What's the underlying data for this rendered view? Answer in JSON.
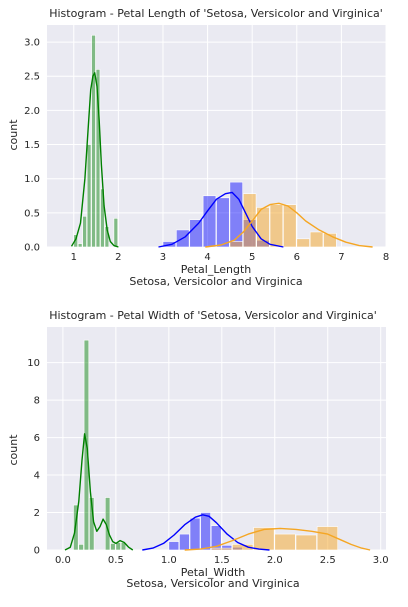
{
  "chart_data": [
    {
      "type": "histogram",
      "title": "Histogram - Petal Length of 'Setosa, Versicolor and Virginica'",
      "xlabel": "Petal_Length",
      "xlabel2": "Setosa, Versicolor and Virginica",
      "ylabel": "count",
      "xlim": [
        0.4,
        8.0
      ],
      "ylim": [
        0,
        3.25
      ],
      "xticks": [
        1,
        2,
        3,
        4,
        5,
        6,
        7,
        8
      ],
      "yticks": [
        0.0,
        0.5,
        1.0,
        1.5,
        2.0,
        2.5,
        3.0
      ],
      "grid": true,
      "series": [
        {
          "color": "#008000",
          "hist_alpha": 0.45,
          "bins": [
            [
              1.0,
              1.1,
              0.18
            ],
            [
              1.1,
              1.2,
              0.05
            ],
            [
              1.2,
              1.3,
              0.45
            ],
            [
              1.3,
              1.4,
              1.5
            ],
            [
              1.4,
              1.5,
              3.1
            ],
            [
              1.5,
              1.6,
              2.6
            ],
            [
              1.6,
              1.7,
              0.85
            ],
            [
              1.7,
              1.8,
              0.3
            ],
            [
              1.8,
              1.9,
              0.0
            ],
            [
              1.9,
              2.0,
              0.42
            ]
          ],
          "kde_x": [
            0.95,
            1.05,
            1.15,
            1.25,
            1.32,
            1.38,
            1.43,
            1.47,
            1.52,
            1.57,
            1.62,
            1.68,
            1.75,
            1.82,
            1.9,
            2.0
          ],
          "kde_y": [
            0.01,
            0.12,
            0.35,
            1.0,
            1.7,
            2.3,
            2.5,
            2.55,
            2.35,
            1.85,
            1.2,
            0.6,
            0.25,
            0.08,
            0.02,
            0.0
          ]
        },
        {
          "color": "#0000ff",
          "hist_alpha": 0.45,
          "bins": [
            [
              3.0,
              3.3,
              0.08
            ],
            [
              3.3,
              3.6,
              0.25
            ],
            [
              3.6,
              3.9,
              0.4
            ],
            [
              3.9,
              4.2,
              0.75
            ],
            [
              4.2,
              4.5,
              0.72
            ],
            [
              4.5,
              4.8,
              0.95
            ],
            [
              4.8,
              5.1,
              0.4
            ],
            [
              5.1,
              5.4,
              0.1
            ]
          ],
          "kde_x": [
            2.9,
            3.2,
            3.5,
            3.8,
            4.0,
            4.2,
            4.4,
            4.55,
            4.7,
            4.85,
            5.0,
            5.2,
            5.4,
            5.7
          ],
          "kde_y": [
            0.0,
            0.04,
            0.15,
            0.35,
            0.53,
            0.7,
            0.78,
            0.8,
            0.7,
            0.5,
            0.3,
            0.12,
            0.04,
            0.0
          ]
        },
        {
          "color": "#f5a623",
          "hist_alpha": 0.5,
          "bins": [
            [
              4.5,
              4.8,
              0.08
            ],
            [
              4.8,
              5.1,
              0.78
            ],
            [
              5.1,
              5.4,
              0.58
            ],
            [
              5.4,
              5.7,
              0.62
            ],
            [
              5.7,
              6.0,
              0.62
            ],
            [
              6.0,
              6.3,
              0.12
            ],
            [
              6.3,
              6.6,
              0.22
            ],
            [
              6.6,
              6.9,
              0.2
            ]
          ],
          "kde_x": [
            3.95,
            4.3,
            4.6,
            4.8,
            5.0,
            5.2,
            5.4,
            5.6,
            5.8,
            6.0,
            6.2,
            6.5,
            6.8,
            7.1,
            7.4,
            7.7
          ],
          "kde_y": [
            0.0,
            0.03,
            0.1,
            0.22,
            0.38,
            0.55,
            0.62,
            0.64,
            0.6,
            0.5,
            0.38,
            0.25,
            0.15,
            0.07,
            0.02,
            0.0
          ]
        }
      ]
    },
    {
      "type": "histogram",
      "title": "Histogram - Petal Width of 'Setosa, Versicolor and Virginica'",
      "xlabel": "Petal_Width",
      "xlabel2": "Setosa, Versicolor and Virginica",
      "ylabel": "count",
      "xlim": [
        -0.15,
        3.05
      ],
      "ylim": [
        0,
        11.9
      ],
      "xticks": [
        0.0,
        0.5,
        1.0,
        1.5,
        2.0,
        2.5,
        3.0
      ],
      "yticks": [
        0,
        2,
        4,
        6,
        8,
        10
      ],
      "grid": true,
      "series": [
        {
          "color": "#008000",
          "hist_alpha": 0.45,
          "bins": [
            [
              0.1,
              0.15,
              2.4
            ],
            [
              0.15,
              0.2,
              0.3
            ],
            [
              0.2,
              0.25,
              11.2
            ],
            [
              0.25,
              0.3,
              2.8
            ],
            [
              0.3,
              0.35,
              0.0
            ],
            [
              0.35,
              0.4,
              0.0
            ],
            [
              0.4,
              0.45,
              2.8
            ],
            [
              0.45,
              0.5,
              0.35
            ],
            [
              0.5,
              0.55,
              0.4
            ],
            [
              0.55,
              0.6,
              0.4
            ]
          ],
          "kde_x": [
            0.02,
            0.07,
            0.11,
            0.15,
            0.18,
            0.205,
            0.23,
            0.26,
            0.29,
            0.32,
            0.35,
            0.38,
            0.41,
            0.44,
            0.47,
            0.5,
            0.54,
            0.58,
            0.62,
            0.66
          ],
          "kde_y": [
            0.0,
            0.15,
            0.9,
            2.6,
            4.8,
            6.2,
            5.4,
            3.1,
            1.5,
            1.0,
            1.25,
            1.65,
            1.35,
            0.8,
            0.45,
            0.35,
            0.5,
            0.4,
            0.15,
            0.0
          ]
        },
        {
          "color": "#0000ff",
          "hist_alpha": 0.45,
          "bins": [
            [
              1.0,
              1.1,
              0.45
            ],
            [
              1.1,
              1.2,
              0.85
            ],
            [
              1.2,
              1.3,
              1.7
            ],
            [
              1.3,
              1.4,
              2.0
            ],
            [
              1.4,
              1.5,
              1.3
            ],
            [
              1.5,
              1.6,
              0.25
            ],
            [
              1.6,
              1.7,
              0.15
            ],
            [
              1.7,
              1.8,
              0.05
            ]
          ],
          "kde_x": [
            0.75,
            0.85,
            0.95,
            1.05,
            1.15,
            1.25,
            1.32,
            1.38,
            1.45,
            1.55,
            1.65,
            1.75,
            1.85,
            1.95
          ],
          "kde_y": [
            0.0,
            0.1,
            0.35,
            0.8,
            1.35,
            1.75,
            1.88,
            1.8,
            1.45,
            0.85,
            0.4,
            0.15,
            0.05,
            0.0
          ]
        },
        {
          "color": "#f5a623",
          "hist_alpha": 0.5,
          "bins": [
            [
              1.4,
              1.6,
              0.1
            ],
            [
              1.6,
              1.8,
              0.3
            ],
            [
              1.8,
              2.0,
              1.2
            ],
            [
              2.0,
              2.2,
              0.85
            ],
            [
              2.2,
              2.4,
              0.8
            ],
            [
              2.4,
              2.6,
              1.25
            ]
          ],
          "kde_x": [
            1.15,
            1.3,
            1.45,
            1.6,
            1.75,
            1.9,
            2.05,
            2.2,
            2.35,
            2.5,
            2.62,
            2.72,
            2.82,
            2.9
          ],
          "kde_y": [
            0.0,
            0.05,
            0.2,
            0.5,
            0.85,
            1.1,
            1.15,
            1.1,
            1.0,
            0.85,
            0.55,
            0.3,
            0.1,
            0.0
          ]
        }
      ]
    }
  ]
}
